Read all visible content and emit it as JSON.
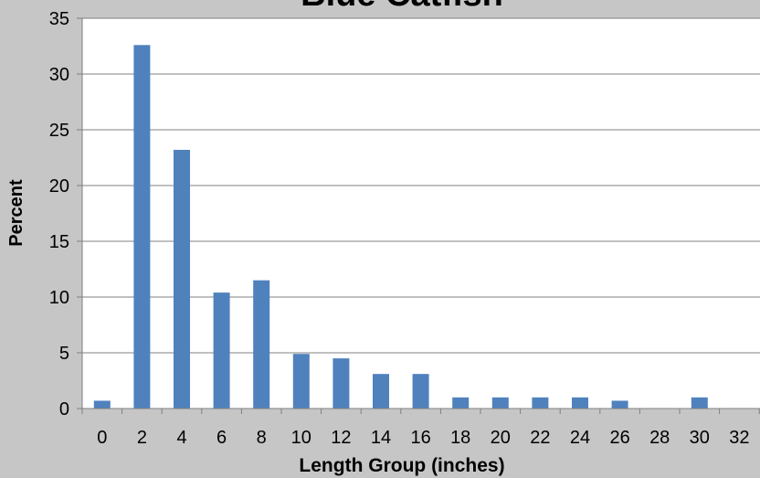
{
  "chart_data": {
    "type": "bar",
    "title": "Blue Catfish",
    "xlabel": "Length Group (inches)",
    "ylabel": "Percent",
    "categories": [
      "0",
      "2",
      "4",
      "6",
      "8",
      "10",
      "12",
      "14",
      "16",
      "18",
      "20",
      "22",
      "24",
      "26",
      "28",
      "30",
      "32"
    ],
    "values": [
      0.7,
      32.6,
      23.2,
      10.4,
      11.5,
      4.9,
      4.5,
      3.1,
      3.1,
      1.0,
      1.0,
      1.0,
      1.0,
      0.7,
      0,
      1.0,
      0
    ],
    "ylim": [
      0,
      35
    ],
    "yticks": [
      "0",
      "5",
      "10",
      "15",
      "20",
      "25",
      "30",
      "35"
    ],
    "grid": true,
    "colors": {
      "bar": "#4f81bd",
      "background": "#c6c6c6",
      "plot_area": "#ffffff",
      "grid": "#808080"
    }
  }
}
